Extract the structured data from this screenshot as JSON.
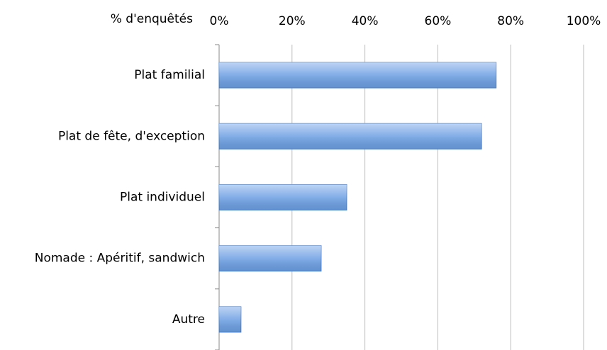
{
  "chart_data": {
    "type": "bar",
    "orientation": "horizontal",
    "x_axis_label": "% d'enquêtés",
    "categories": [
      "Plat familial",
      "Plat de fête, d'exception",
      "Plat individuel",
      "Nomade : Apéritif, sandwich",
      "Autre"
    ],
    "values": [
      76,
      72,
      35,
      28,
      6
    ],
    "color": "#6c9fe3",
    "xlim": [
      0,
      100
    ],
    "xticks": [
      {
        "value": 0,
        "label": "0%"
      },
      {
        "value": 20,
        "label": "20%"
      },
      {
        "value": 40,
        "label": "40%"
      },
      {
        "value": 60,
        "label": "60%"
      },
      {
        "value": 80,
        "label": "80%"
      },
      {
        "value": 100,
        "label": "100%"
      }
    ],
    "grid": true
  }
}
